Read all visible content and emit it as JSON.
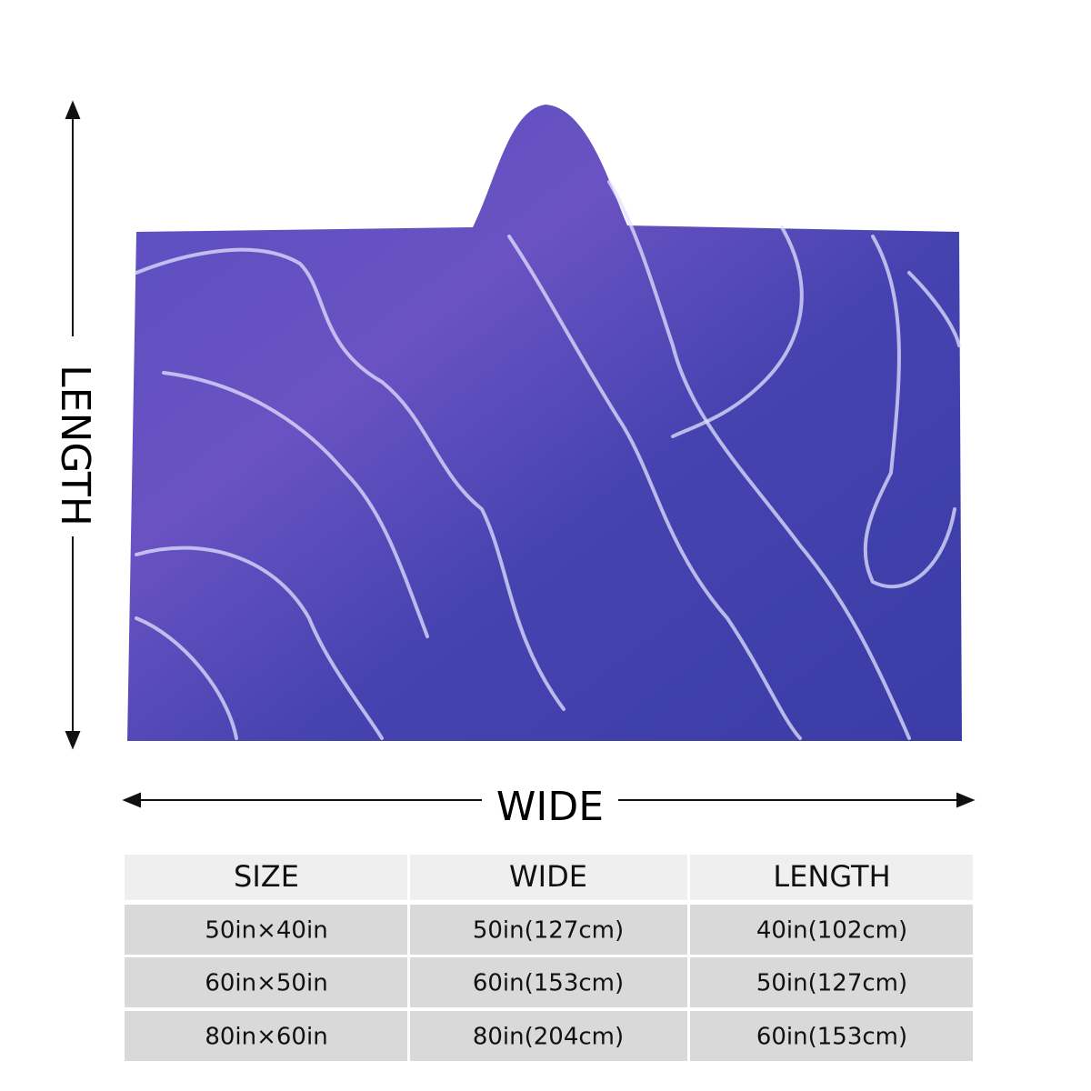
{
  "length_label": "LENGTH",
  "wide_label": "WIDE",
  "table": {
    "header": [
      "SIZE",
      "WIDE",
      "LENGTH"
    ],
    "rows": [
      [
        "50in×40in",
        "50in(127cm)",
        "40in(102cm)"
      ],
      [
        "60in×50in",
        "60in(153cm)",
        "50in(127cm)"
      ],
      [
        "80in×60in",
        "80in(204cm)",
        "60in(153cm)"
      ]
    ]
  }
}
